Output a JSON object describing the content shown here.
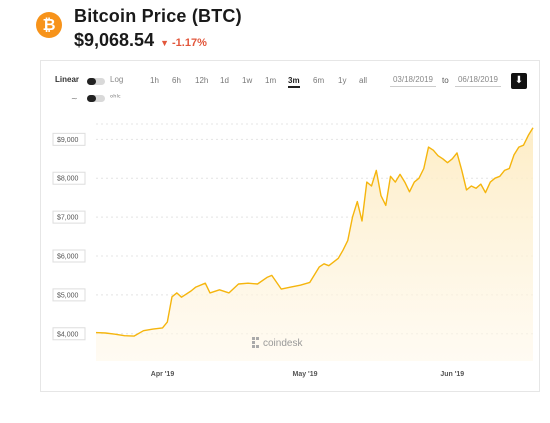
{
  "header": {
    "logo_glyph": "₿",
    "title": "Bitcoin Price (BTC)",
    "price": "$9,068.54",
    "change": "-1.17%",
    "change_color": "#e2563b"
  },
  "toolbar": {
    "scale_linear": "Linear",
    "scale_log": "Log",
    "ranges": [
      "1h",
      "6h",
      "12h",
      "1d",
      "1w",
      "1m",
      "3m",
      "6m",
      "1y",
      "all"
    ],
    "active_range": "3m",
    "date_from": "03/18/2019",
    "date_to_label": "to",
    "date_to": "06/18/2019",
    "chart_type_line": "~",
    "chart_type_ohlc": "ᵒʰˡᶜ"
  },
  "watermark": "coindesk",
  "colors": {
    "line": "#f5b50d",
    "fill": "#fdf3dc",
    "brand": "#f7931a"
  },
  "chart_data": {
    "type": "area",
    "title": "Bitcoin Price (BTC)",
    "xlabel": "",
    "ylabel": "",
    "x_ticks": [
      "Apr '19",
      "May '19",
      "Jun '19"
    ],
    "y_ticks": [
      "$4,000",
      "$5,000",
      "$6,000",
      "$7,000",
      "$8,000",
      "$9,000"
    ],
    "ylim": [
      3300,
      9600
    ],
    "x_range": [
      "2019-03-18",
      "2019-06-18"
    ],
    "grid": true,
    "series": [
      {
        "name": "",
        "x": [
          "2019-03-18",
          "2019-03-20",
          "2019-03-22",
          "2019-03-24",
          "2019-03-26",
          "2019-03-28",
          "2019-03-30",
          "2019-04-01",
          "2019-04-02",
          "2019-04-03",
          "2019-04-04",
          "2019-04-05",
          "2019-04-07",
          "2019-04-08",
          "2019-04-10",
          "2019-04-11",
          "2019-04-13",
          "2019-04-15",
          "2019-04-17",
          "2019-04-19",
          "2019-04-21",
          "2019-04-23",
          "2019-04-24",
          "2019-04-26",
          "2019-04-28",
          "2019-04-30",
          "2019-05-02",
          "2019-05-04",
          "2019-05-05",
          "2019-05-06",
          "2019-05-08",
          "2019-05-09",
          "2019-05-10",
          "2019-05-11",
          "2019-05-12",
          "2019-05-13",
          "2019-05-14",
          "2019-05-15",
          "2019-05-16",
          "2019-05-17",
          "2019-05-18",
          "2019-05-19",
          "2019-05-20",
          "2019-05-21",
          "2019-05-22",
          "2019-05-23",
          "2019-05-24",
          "2019-05-25",
          "2019-05-26",
          "2019-05-27",
          "2019-05-28",
          "2019-05-29",
          "2019-05-30",
          "2019-05-31",
          "2019-06-01",
          "2019-06-02",
          "2019-06-03",
          "2019-06-04",
          "2019-06-05",
          "2019-06-06",
          "2019-06-07",
          "2019-06-08",
          "2019-06-09",
          "2019-06-10",
          "2019-06-11",
          "2019-06-12",
          "2019-06-13",
          "2019-06-14",
          "2019-06-15",
          "2019-06-16",
          "2019-06-17",
          "2019-06-18"
        ],
        "values": [
          4030,
          4020,
          3990,
          3950,
          3940,
          4080,
          4120,
          4150,
          4300,
          4950,
          5050,
          4940,
          5100,
          5200,
          5300,
          5050,
          5130,
          5050,
          5280,
          5300,
          5280,
          5450,
          5500,
          5150,
          5200,
          5250,
          5320,
          5720,
          5800,
          5750,
          5940,
          6150,
          6400,
          7000,
          7400,
          6900,
          7900,
          7800,
          8200,
          7550,
          7300,
          8050,
          7900,
          8100,
          7900,
          7650,
          7900,
          8000,
          8250,
          8800,
          8720,
          8580,
          8500,
          8400,
          8500,
          8650,
          8200,
          7700,
          7800,
          7740,
          7850,
          7630,
          7900,
          8000,
          8050,
          8200,
          8250,
          8600,
          8800,
          8850,
          9100,
          9300
        ]
      }
    ]
  }
}
